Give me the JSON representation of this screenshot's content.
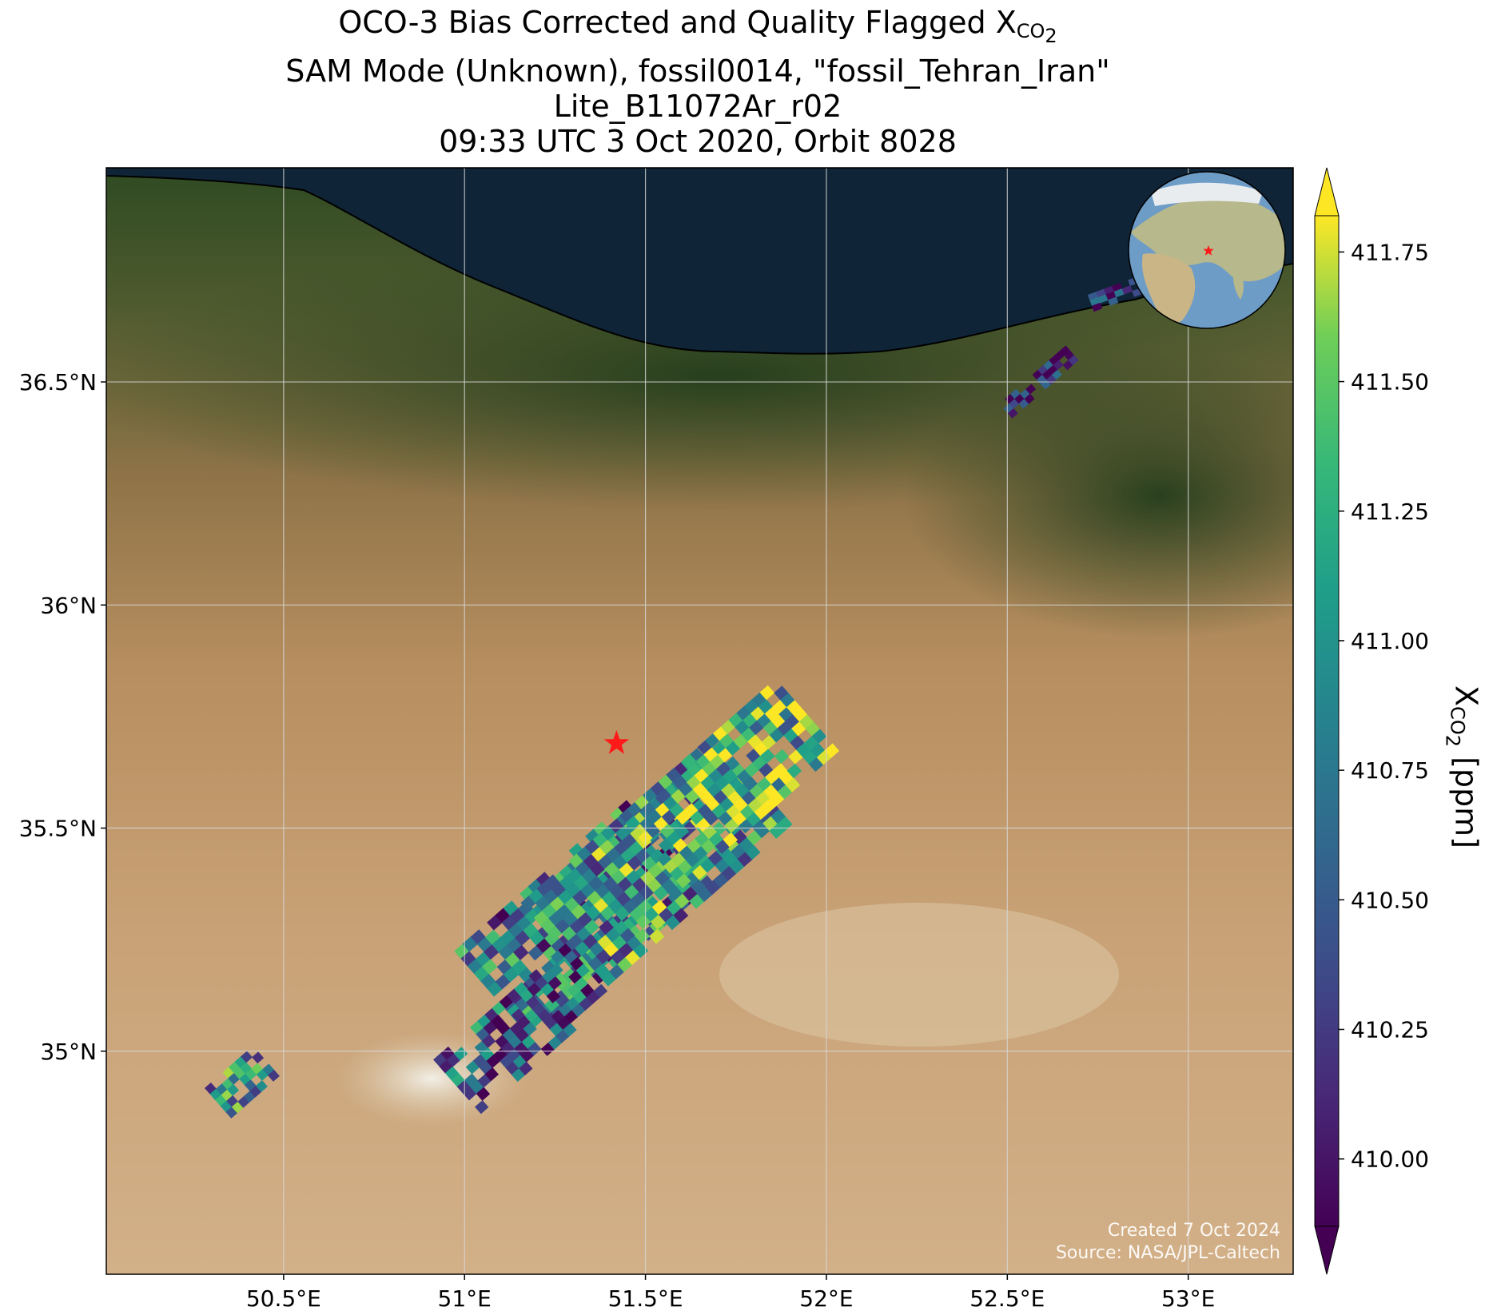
{
  "title": {
    "line1_prefix": "OCO-3 Bias Corrected and Quality Flagged X",
    "line1_sub": "CO",
    "line1_subsub": "2",
    "line2": "SAM Mode (Unknown), fossil0014, \"fossil_Tehran_Iran\"",
    "line3": "Lite_B11072Ar_r02",
    "line4": "09:33 UTC 3 Oct 2020, Orbit 8028"
  },
  "map": {
    "lon_range": [
      50.01,
      53.29
    ],
    "lat_range": [
      34.5,
      36.98
    ],
    "lon_ticks": [
      50.5,
      51.0,
      51.5,
      52.0,
      52.5,
      53.0
    ],
    "lat_ticks": [
      35.0,
      35.5,
      36.0,
      36.5
    ],
    "lon_tick_labels": [
      "50.5°E",
      "51°E",
      "51.5°E",
      "52°E",
      "52.5°E",
      "53°E"
    ],
    "lat_tick_labels": [
      "35°N",
      "35.5°N",
      "36°N",
      "36.5°N"
    ],
    "grid": true,
    "target_marker": {
      "lon": 51.42,
      "lat": 35.69,
      "color": "#ff1a1a"
    },
    "inset_globe": {
      "position": "top-right",
      "center_lon": 51.42,
      "center_lat": 35.69
    }
  },
  "colorbar": {
    "range": [
      409.87,
      411.82
    ],
    "ticks": [
      410.0,
      410.25,
      410.5,
      410.75,
      411.0,
      411.25,
      411.5,
      411.75
    ],
    "tick_labels": [
      "410.00",
      "410.25",
      "410.50",
      "410.75",
      "411.00",
      "411.25",
      "411.50",
      "411.75"
    ],
    "label_prefix": "X",
    "label_sub": "CO",
    "label_subsub": "2",
    "label_suffix": " [ppm]",
    "colormap": "viridis",
    "extend": "both"
  },
  "credits": {
    "created": "Created 7 Oct 2024",
    "source": "Source: NASA/JPL-Caltech"
  }
}
